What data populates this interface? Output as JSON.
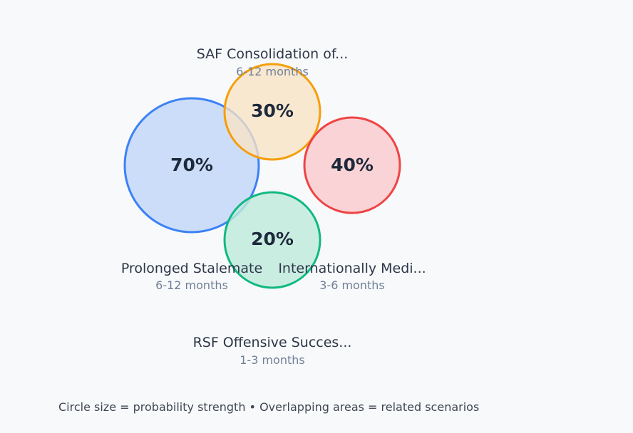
{
  "scenarios": [
    {
      "name": "Prolonged Stalemate",
      "timeframe": "6-12 months",
      "probability": "70%",
      "fill": "#c8daf9",
      "stroke": "#3b82f6"
    },
    {
      "name": "SAF Consolidation of...",
      "timeframe": "6-12 months",
      "probability": "30%",
      "fill": "#f9e3c4",
      "stroke": "#f59e0b"
    },
    {
      "name": "Internationally Medi...",
      "timeframe": "3-6 months",
      "probability": "40%",
      "fill": "#f8cfd2",
      "stroke": "#ef4444"
    },
    {
      "name": "RSF Offensive Succes...",
      "timeframe": "1-3 months",
      "probability": "20%",
      "fill": "#c0eadc",
      "stroke": "#10b981"
    }
  ],
  "caption": "Circle size = probability strength • Overlapping areas = related scenarios"
}
